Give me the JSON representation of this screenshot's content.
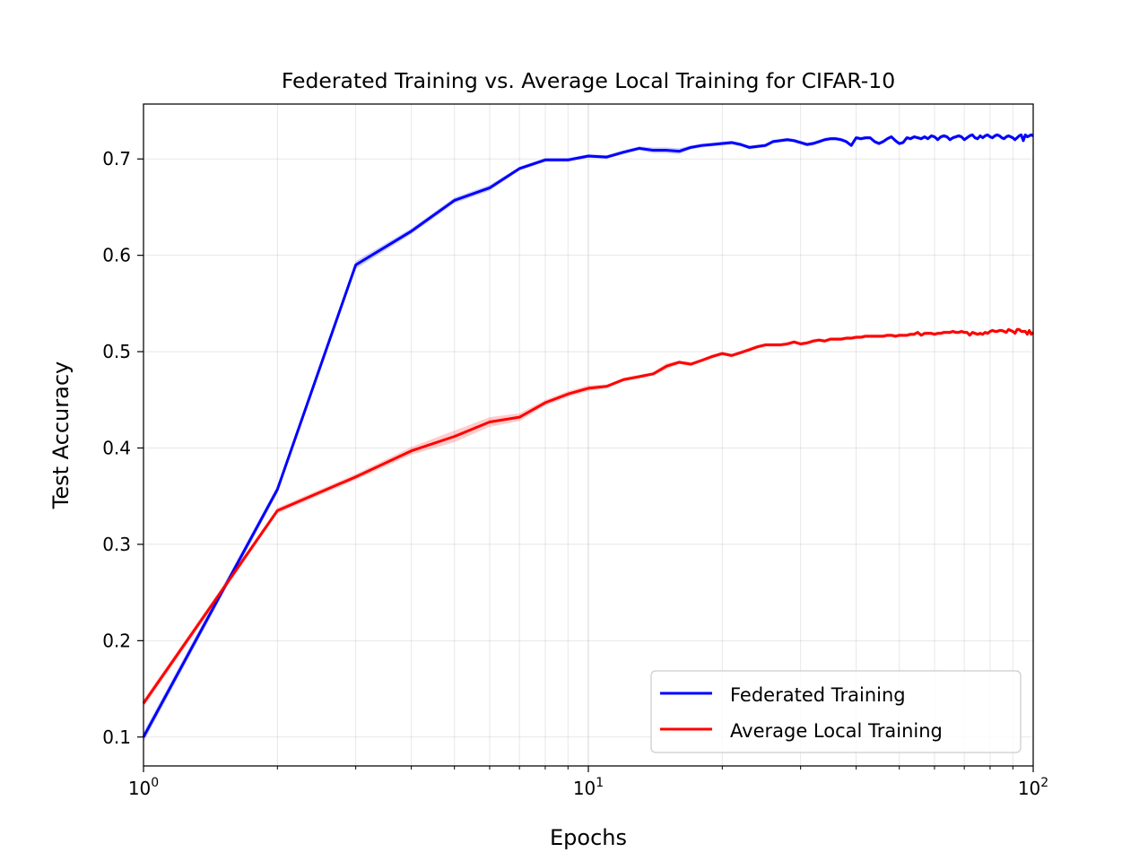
{
  "chart_data": {
    "type": "line",
    "title": "Federated Training vs. Average Local Training for CIFAR-10",
    "xlabel": "Epochs",
    "ylabel": "Test Accuracy",
    "xscale": "log",
    "xlim": [
      1,
      100
    ],
    "ylim": [
      0.07,
      0.757
    ],
    "x_ticks": [
      {
        "value": 1,
        "base": "10",
        "exp": "0"
      },
      {
        "value": 10,
        "base": "10",
        "exp": "1"
      },
      {
        "value": 100,
        "base": "10",
        "exp": "2"
      }
    ],
    "y_ticks": [
      {
        "value": 0.1,
        "label": "0.1"
      },
      {
        "value": 0.2,
        "label": "0.2"
      },
      {
        "value": 0.3,
        "label": "0.3"
      },
      {
        "value": 0.4,
        "label": "0.4"
      },
      {
        "value": 0.5,
        "label": "0.5"
      },
      {
        "value": 0.6,
        "label": "0.6"
      },
      {
        "value": 0.7,
        "label": "0.7"
      }
    ],
    "grid": true,
    "legend_position": "lower-right",
    "series": [
      {
        "name": "Federated Training",
        "color": "#0000ff",
        "x": [
          1,
          2,
          3,
          4,
          5,
          6,
          7,
          8,
          9,
          10,
          11,
          12,
          13,
          14,
          15,
          16,
          17,
          18,
          19,
          20,
          21,
          22,
          23,
          24,
          25,
          26,
          27,
          28,
          29,
          30,
          31,
          32,
          33,
          34,
          35,
          36,
          37,
          38,
          39,
          40,
          41,
          42,
          43,
          44,
          45,
          46,
          47,
          48,
          49,
          50,
          51,
          52,
          53,
          54,
          55,
          56,
          57,
          58,
          59,
          60,
          61,
          62,
          63,
          64,
          65,
          66,
          67,
          68,
          69,
          70,
          71,
          72,
          73,
          74,
          75,
          76,
          77,
          78,
          79,
          80,
          81,
          82,
          83,
          84,
          85,
          86,
          87,
          88,
          89,
          90,
          91,
          92,
          93,
          94,
          95,
          96,
          97,
          98,
          99,
          100
        ],
        "y": [
          0.1,
          0.357,
          0.59,
          0.625,
          0.657,
          0.67,
          0.69,
          0.699,
          0.699,
          0.703,
          0.702,
          0.707,
          0.711,
          0.709,
          0.709,
          0.708,
          0.712,
          0.714,
          0.715,
          0.716,
          0.717,
          0.715,
          0.712,
          0.713,
          0.714,
          0.718,
          0.719,
          0.72,
          0.719,
          0.717,
          0.715,
          0.716,
          0.718,
          0.72,
          0.721,
          0.721,
          0.72,
          0.718,
          0.714,
          0.722,
          0.721,
          0.722,
          0.722,
          0.718,
          0.716,
          0.718,
          0.721,
          0.723,
          0.719,
          0.716,
          0.717,
          0.722,
          0.721,
          0.723,
          0.722,
          0.721,
          0.723,
          0.721,
          0.724,
          0.723,
          0.72,
          0.723,
          0.724,
          0.723,
          0.72,
          0.722,
          0.723,
          0.724,
          0.723,
          0.72,
          0.722,
          0.724,
          0.725,
          0.722,
          0.721,
          0.724,
          0.722,
          0.724,
          0.725,
          0.723,
          0.722,
          0.724,
          0.725,
          0.724,
          0.722,
          0.721,
          0.723,
          0.724,
          0.723,
          0.722,
          0.72,
          0.722,
          0.724,
          0.725,
          0.719,
          0.725,
          0.723,
          0.724,
          0.725,
          0.724
        ],
        "band": [
          0.005,
          0.004,
          0.004,
          0.003,
          0.003,
          0.003,
          0.002,
          0.002,
          0.002,
          0.002,
          0.002,
          0.002,
          0.002,
          0.003,
          0.003,
          0.003,
          0.002,
          0.002,
          0.002,
          0.002,
          0.002,
          0.002,
          0.002,
          0.002,
          0.002,
          0.002,
          0.002,
          0.002,
          0.002,
          0.002,
          0.002,
          0.002,
          0.002,
          0.002,
          0.002,
          0.002,
          0.002,
          0.002,
          0.002,
          0.002,
          0.002,
          0.002,
          0.002,
          0.002,
          0.002,
          0.002,
          0.002,
          0.002,
          0.002,
          0.002,
          0.002,
          0.002,
          0.002,
          0.002,
          0.002,
          0.002,
          0.002,
          0.002,
          0.002,
          0.002,
          0.002,
          0.002,
          0.002,
          0.002,
          0.002,
          0.002,
          0.002,
          0.002,
          0.002,
          0.002,
          0.002,
          0.002,
          0.002,
          0.002,
          0.002,
          0.002,
          0.002,
          0.002,
          0.002,
          0.002,
          0.002,
          0.002,
          0.002,
          0.002,
          0.002,
          0.002,
          0.002,
          0.002,
          0.002,
          0.002,
          0.002,
          0.002,
          0.002,
          0.002,
          0.002,
          0.002,
          0.002,
          0.002,
          0.002,
          0.002
        ]
      },
      {
        "name": "Average Local Training",
        "color": "#ff0000",
        "x": [
          1,
          2,
          3,
          4,
          5,
          6,
          7,
          8,
          9,
          10,
          11,
          12,
          13,
          14,
          15,
          16,
          17,
          18,
          19,
          20,
          21,
          22,
          23,
          24,
          25,
          26,
          27,
          28,
          29,
          30,
          31,
          32,
          33,
          34,
          35,
          36,
          37,
          38,
          39,
          40,
          41,
          42,
          43,
          44,
          45,
          46,
          47,
          48,
          49,
          50,
          51,
          52,
          53,
          54,
          55,
          56,
          57,
          58,
          59,
          60,
          61,
          62,
          63,
          64,
          65,
          66,
          67,
          68,
          69,
          70,
          71,
          72,
          73,
          74,
          75,
          76,
          77,
          78,
          79,
          80,
          81,
          82,
          83,
          84,
          85,
          86,
          87,
          88,
          89,
          90,
          91,
          92,
          93,
          94,
          95,
          96,
          97,
          98,
          99,
          100
        ],
        "y": [
          0.135,
          0.335,
          0.37,
          0.397,
          0.412,
          0.427,
          0.432,
          0.447,
          0.456,
          0.462,
          0.464,
          0.471,
          0.474,
          0.477,
          0.485,
          0.489,
          0.487,
          0.491,
          0.495,
          0.498,
          0.496,
          0.499,
          0.502,
          0.505,
          0.507,
          0.507,
          0.507,
          0.508,
          0.51,
          0.508,
          0.509,
          0.511,
          0.512,
          0.511,
          0.513,
          0.513,
          0.513,
          0.514,
          0.514,
          0.515,
          0.515,
          0.516,
          0.516,
          0.516,
          0.516,
          0.516,
          0.517,
          0.517,
          0.516,
          0.517,
          0.517,
          0.517,
          0.518,
          0.518,
          0.52,
          0.517,
          0.519,
          0.519,
          0.519,
          0.518,
          0.519,
          0.519,
          0.52,
          0.52,
          0.52,
          0.521,
          0.52,
          0.52,
          0.521,
          0.52,
          0.52,
          0.517,
          0.52,
          0.519,
          0.518,
          0.519,
          0.518,
          0.52,
          0.519,
          0.521,
          0.522,
          0.521,
          0.521,
          0.522,
          0.522,
          0.521,
          0.52,
          0.523,
          0.522,
          0.521,
          0.519,
          0.523,
          0.523,
          0.521,
          0.521,
          0.521,
          0.518,
          0.522,
          0.518,
          0.52
        ],
        "band": [
          0.004,
          0.003,
          0.003,
          0.004,
          0.006,
          0.005,
          0.004,
          0.003,
          0.003,
          0.003,
          0.002,
          0.002,
          0.002,
          0.002,
          0.003,
          0.002,
          0.002,
          0.002,
          0.002,
          0.002,
          0.002,
          0.002,
          0.002,
          0.002,
          0.002,
          0.002,
          0.002,
          0.002,
          0.002,
          0.002,
          0.002,
          0.002,
          0.002,
          0.002,
          0.002,
          0.002,
          0.002,
          0.002,
          0.002,
          0.002,
          0.002,
          0.002,
          0.002,
          0.002,
          0.002,
          0.002,
          0.002,
          0.002,
          0.002,
          0.002,
          0.002,
          0.002,
          0.002,
          0.002,
          0.002,
          0.002,
          0.002,
          0.002,
          0.002,
          0.002,
          0.002,
          0.002,
          0.002,
          0.002,
          0.002,
          0.002,
          0.002,
          0.002,
          0.002,
          0.002,
          0.002,
          0.002,
          0.002,
          0.002,
          0.002,
          0.002,
          0.002,
          0.002,
          0.002,
          0.002,
          0.002,
          0.002,
          0.002,
          0.002,
          0.002,
          0.002,
          0.002,
          0.002,
          0.002,
          0.002,
          0.002,
          0.002,
          0.002,
          0.002,
          0.002,
          0.002,
          0.002,
          0.002,
          0.002,
          0.002
        ]
      }
    ]
  }
}
